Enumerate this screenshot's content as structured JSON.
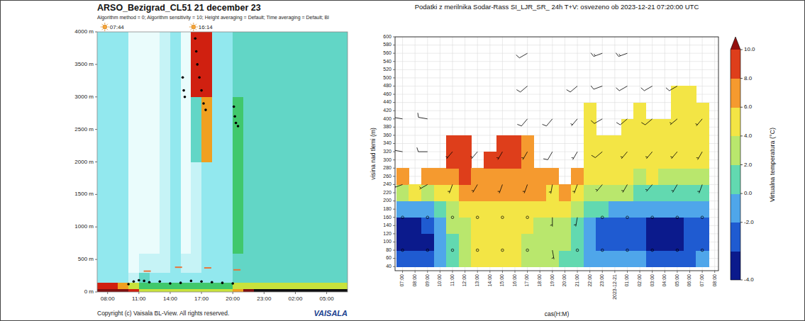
{
  "chart_data": [
    {
      "type": "heatmap",
      "title": "ARSO_Bezigrad_CL51 21 december 23",
      "subtitle": "Algorithm method = 0; Algorithm sensitivity = 10; Height averaging = Default; Time averaging = Default; Bl",
      "xlim": [
        7,
        31
      ],
      "xticks": [
        {
          "value": 8,
          "label": "08:00"
        },
        {
          "value": 11,
          "label": "11:00"
        },
        {
          "value": 14,
          "label": "14:00"
        },
        {
          "value": 17,
          "label": "17:00"
        },
        {
          "value": 20,
          "label": "20:00"
        },
        {
          "value": 23,
          "label": "23:00"
        },
        {
          "value": 26,
          "label": "02:00"
        },
        {
          "value": 29,
          "label": "05:00"
        }
      ],
      "ylim": [
        0,
        4000
      ],
      "yticks": [
        {
          "value": 0,
          "label": "0 m"
        },
        {
          "value": 500,
          "label": "500 m"
        },
        {
          "value": 1000,
          "label": "1000 m"
        },
        {
          "value": 1500,
          "label": "1500 m"
        },
        {
          "value": 2000,
          "label": "2000 m"
        },
        {
          "value": 2500,
          "label": "2500 m"
        },
        {
          "value": 3000,
          "label": "3000 m"
        },
        {
          "value": 3500,
          "label": "3500 m"
        },
        {
          "value": 4000,
          "label": "4000 m"
        }
      ],
      "x": [
        7,
        8,
        9,
        10,
        11,
        12,
        13,
        14,
        15,
        16,
        17,
        18,
        19,
        20,
        21,
        22,
        23,
        24,
        25,
        26,
        27,
        28,
        29,
        30
      ],
      "heights": [
        0,
        50,
        150,
        300,
        600,
        1000,
        2000,
        3000,
        4000
      ],
      "backscatter": [
        [
          9,
          8,
          3,
          3,
          3,
          3,
          3,
          3
        ],
        [
          9,
          8,
          3,
          3,
          3,
          3,
          3,
          3
        ],
        [
          9,
          7,
          3,
          3,
          3,
          3,
          3,
          3
        ],
        [
          8,
          6,
          2,
          1,
          1,
          1,
          1,
          1
        ],
        [
          6,
          5,
          4,
          2,
          1,
          1,
          1,
          1
        ],
        [
          6,
          5,
          3,
          2,
          1,
          1,
          1,
          1
        ],
        [
          6,
          5,
          3,
          2,
          2,
          2,
          2,
          2
        ],
        [
          6,
          5,
          3,
          3,
          3,
          3,
          3,
          3
        ],
        [
          6,
          5,
          3,
          2,
          1,
          1,
          1,
          1
        ],
        [
          6,
          5,
          3,
          2,
          2,
          2,
          4,
          8
        ],
        [
          6,
          5,
          3,
          3,
          3,
          3,
          7,
          8
        ],
        [
          6,
          5,
          3,
          3,
          3,
          3,
          3,
          3
        ],
        [
          6,
          5,
          3,
          3,
          3,
          3,
          3,
          3
        ],
        [
          7,
          6,
          4,
          4,
          5,
          5,
          5,
          4
        ],
        [
          9,
          6,
          4,
          4,
          4,
          4,
          4,
          4
        ],
        [
          10,
          6,
          4,
          4,
          4,
          4,
          4,
          4
        ],
        [
          10,
          6,
          4,
          4,
          4,
          4,
          4,
          4
        ],
        [
          10,
          6,
          4,
          4,
          4,
          4,
          4,
          4
        ],
        [
          10,
          6,
          4,
          4,
          4,
          4,
          4,
          4
        ],
        [
          10,
          6,
          4,
          4,
          4,
          4,
          4,
          4
        ],
        [
          10,
          6,
          4,
          4,
          4,
          4,
          4,
          4
        ],
        [
          10,
          6,
          4,
          4,
          4,
          4,
          4,
          4
        ],
        [
          10,
          6,
          4,
          4,
          4,
          4,
          4,
          4
        ],
        [
          10,
          6,
          4,
          4,
          4,
          4,
          4,
          4
        ]
      ],
      "series": [
        {
          "color": "#000000",
          "marker": "circle",
          "x": [
            15.2,
            15.3,
            15.4,
            16.4,
            16.5,
            16.6,
            16.8,
            17.0,
            17.2,
            17.4,
            20.1,
            20.2,
            20.3,
            20.5
          ],
          "values": [
            3300,
            3100,
            3000,
            3900,
            3700,
            3500,
            3300,
            3100,
            2900,
            2800,
            2850,
            2700,
            2600,
            2550
          ]
        },
        {
          "color": "#e8743b",
          "marker": "dash",
          "x": [
            11.8,
            14.8,
            17.6,
            20.4
          ],
          "values": [
            320,
            380,
            370,
            340
          ]
        },
        {
          "color": "#000000",
          "marker": "circle",
          "x": [
            10,
            10.5,
            11,
            11.5,
            12,
            13,
            14,
            15,
            16,
            17,
            18,
            19,
            20
          ],
          "values": [
            120,
            160,
            180,
            170,
            150,
            160,
            130,
            140,
            170,
            160,
            150,
            140,
            130
          ]
        }
      ],
      "annotations": [
        {
          "x": 7.733,
          "text": "07:44"
        },
        {
          "x": 16.233,
          "text": "16:14"
        }
      ],
      "footer": "Copyright (c) Vaisala BL-View. All rights reserved.",
      "logo": "VAISALA"
    },
    {
      "type": "heatmap",
      "title": "Podatki z merilnika Sodar-Rass SI_LJR_SR_ 24h T+V: osvezeno ob 2023-12-21 07:20:00 UTC",
      "x_label": "cas(H:M)",
      "y_label": "visina nad tlemi (m)",
      "grid": true,
      "xlim": [
        6.4,
        32.3
      ],
      "xticks": [
        {
          "value": 7,
          "label": "07:00"
        },
        {
          "value": 8,
          "label": "08:00"
        },
        {
          "value": 9,
          "label": "09:00"
        },
        {
          "value": 10,
          "label": "10:00"
        },
        {
          "value": 11,
          "label": "11:00"
        },
        {
          "value": 12,
          "label": "12:00"
        },
        {
          "value": 13,
          "label": "13:00"
        },
        {
          "value": 14,
          "label": "14:00"
        },
        {
          "value": 15,
          "label": "15:00"
        },
        {
          "value": 16,
          "label": "16:00"
        },
        {
          "value": 17,
          "label": "17:00"
        },
        {
          "value": 18,
          "label": "18:00"
        },
        {
          "value": 19,
          "label": "19:00"
        },
        {
          "value": 20,
          "label": "20:00"
        },
        {
          "value": 21,
          "label": "21:00"
        },
        {
          "value": 22,
          "label": "22:00"
        },
        {
          "value": 23,
          "label": "23:00"
        },
        {
          "value": 24,
          "label": "2023-12-21"
        },
        {
          "value": 25,
          "label": "01:00"
        },
        {
          "value": 26,
          "label": "02:00"
        },
        {
          "value": 27,
          "label": "03:00"
        },
        {
          "value": 28,
          "label": "04:00"
        },
        {
          "value": 29,
          "label": "05:00"
        },
        {
          "value": 30,
          "label": "06:00"
        },
        {
          "value": 31,
          "label": "07:00"
        },
        {
          "value": 32,
          "label": "08:00"
        }
      ],
      "ylim": [
        30,
        600
      ],
      "yticks": [
        40,
        60,
        80,
        100,
        120,
        140,
        160,
        180,
        200,
        220,
        240,
        260,
        280,
        300,
        320,
        340,
        360,
        380,
        400,
        420,
        440,
        460,
        480,
        500,
        520,
        540,
        560,
        580,
        600
      ],
      "x": [
        7,
        8,
        9,
        10,
        11,
        12,
        13,
        14,
        15,
        16,
        17,
        18,
        19,
        20,
        21,
        22,
        23,
        24,
        25,
        26,
        27,
        28,
        29,
        30,
        31
      ],
      "height_edges": [
        40,
        80,
        120,
        160,
        200,
        240,
        280,
        320,
        360,
        400,
        440,
        480
      ],
      "temperature": [
        [
          -2.5,
          -3.5,
          -3.5,
          -1.0,
          2.5,
          6.5
        ],
        [
          -2.6,
          -3.6,
          -3.4,
          -0.8,
          5.5
        ],
        [
          -2.2,
          -3.2,
          -3.0,
          -0.5,
          3.5,
          7.0
        ],
        [
          -1.0,
          -1.5,
          -1.5,
          0.5,
          4.0,
          7.5
        ],
        [
          1.0,
          1.5,
          2.0,
          3.0,
          5.5,
          7.5,
          8.5,
          8.5
        ],
        [
          3.0,
          3.2,
          3.5,
          4.5,
          6.5,
          8.2,
          8.5,
          8.4
        ],
        [
          4.0,
          4.2,
          4.5,
          5.0,
          6.8,
          7.8
        ],
        [
          4.5,
          4.6,
          4.8,
          5.2,
          6.5,
          7.5,
          8.2
        ],
        [
          4.8,
          4.8,
          5.0,
          5.5,
          6.5,
          7.5,
          8.3,
          8.5
        ],
        [
          4.5,
          4.6,
          4.8,
          5.5,
          6.8,
          7.8,
          8.2,
          8.3
        ],
        [
          3.0,
          3.5,
          4.2,
          5.0,
          6.5,
          7.5,
          7.5,
          7.2
        ],
        [
          2.5,
          3.0,
          3.8,
          4.8,
          6.0,
          7.0
        ],
        [
          2.0,
          2.8,
          3.8,
          4.5,
          5.5,
          6.8
        ],
        [
          1.5,
          2.2,
          3.5,
          4.5,
          6.2
        ],
        [
          0.5,
          0.5,
          1.5,
          3.5,
          5.5,
          6.5
        ],
        [
          -0.5,
          -1.5,
          -1.0,
          0.5,
          3.0,
          4.5,
          4.8,
          4.8,
          4.5,
          4.5
        ],
        [
          -1.5,
          -2.5,
          -2.2,
          0.0,
          2.5,
          4.2,
          4.5,
          4.5
        ],
        [
          -2.0,
          -2.8,
          -2.8,
          -0.5,
          2.5,
          4.2,
          4.5,
          4.4
        ],
        [
          -2.0,
          -2.8,
          -2.5,
          -0.8,
          2.5,
          4.2,
          4.5,
          4.5,
          4.3
        ],
        [
          -1.5,
          -2.5,
          -2.5,
          -1.0,
          1.5,
          3.5,
          4.3,
          4.4,
          4.3,
          4.1
        ],
        [
          -2.2,
          -3.2,
          -3.2,
          -1.2,
          1.8,
          4.0,
          4.6,
          4.5,
          4.3
        ],
        [
          -2.5,
          -3.5,
          -3.3,
          -1.5,
          1.5,
          3.8,
          4.3,
          4.4,
          4.2
        ],
        [
          -2.4,
          -3.2,
          -3.2,
          -1.5,
          1.5,
          3.8,
          4.4,
          4.6,
          4.5,
          4.3,
          4.2
        ],
        [
          -2.5,
          -2.8,
          -2.6,
          -1.2,
          1.6,
          3.8,
          4.5,
          4.6,
          4.4,
          4.2,
          4.0
        ],
        [
          -2.0,
          -2.5,
          -2.5,
          -1.0,
          1.5,
          3.5,
          4.2,
          4.4,
          4.2,
          4.0
        ]
      ],
      "colorbar": {
        "label": "Virtualna temperatura (°C)",
        "levels": [
          -4,
          -3,
          -2,
          0,
          2,
          4,
          6,
          8,
          10
        ],
        "ticks": [
          {
            "value": -4,
            "label": "-4.0"
          },
          {
            "value": -2,
            "label": "-2.0"
          },
          {
            "value": 0,
            "label": "0.0"
          },
          {
            "value": 2,
            "label": "2.0"
          },
          {
            "value": 4,
            "label": "4.0"
          },
          {
            "value": 6,
            "label": "6.0"
          },
          {
            "value": 8,
            "label": "8.0"
          },
          {
            "value": 10,
            "label": "10.0"
          }
        ]
      },
      "wind_x": [
        7,
        9,
        11,
        13,
        15,
        17,
        19,
        21,
        23,
        25,
        27,
        29,
        31
      ],
      "wind_heights": [
        80,
        160,
        240,
        320,
        400,
        480,
        560
      ],
      "wind_speed": [
        [
          0,
          0,
          5,
          10,
          10,
          null,
          null
        ],
        [
          0,
          0,
          5,
          10,
          10,
          null,
          null
        ],
        [
          0,
          0,
          5,
          5,
          null,
          null,
          null
        ],
        [
          0,
          0,
          5,
          5,
          null,
          null,
          null
        ],
        [
          0,
          0,
          5,
          5,
          null,
          null,
          null
        ],
        [
          0,
          0,
          5,
          5,
          10,
          10,
          10
        ],
        [
          5,
          5,
          5,
          10,
          10,
          null,
          null
        ],
        [
          0,
          5,
          5,
          5,
          5,
          10,
          null
        ],
        [
          0,
          0,
          5,
          10,
          10,
          10,
          15
        ],
        [
          0,
          0,
          5,
          5,
          10,
          10,
          15
        ],
        [
          0,
          0,
          5,
          5,
          10,
          10,
          null
        ],
        [
          0,
          0,
          5,
          5,
          5,
          10,
          null
        ],
        [
          0,
          0,
          5,
          5,
          5,
          null,
          null
        ]
      ],
      "wind_dir": [
        [
          null,
          null,
          250,
          280,
          280,
          null,
          null
        ],
        [
          null,
          null,
          240,
          270,
          280,
          null,
          null
        ],
        [
          null,
          null,
          200,
          220,
          null,
          null,
          null
        ],
        [
          null,
          null,
          210,
          220,
          null,
          null,
          null
        ],
        [
          null,
          null,
          200,
          210,
          null,
          null,
          null
        ],
        [
          null,
          null,
          200,
          210,
          220,
          230,
          240
        ],
        [
          170,
          180,
          190,
          210,
          220,
          null,
          null
        ],
        [
          null,
          190,
          200,
          210,
          220,
          230,
          null
        ],
        [
          null,
          null,
          220,
          230,
          240,
          250,
          250
        ],
        [
          null,
          null,
          210,
          220,
          230,
          240,
          250
        ],
        [
          null,
          null,
          220,
          220,
          230,
          240,
          null
        ],
        [
          null,
          null,
          210,
          220,
          230,
          240,
          null
        ],
        [
          null,
          null,
          200,
          210,
          220,
          null,
          null
        ]
      ]
    }
  ]
}
